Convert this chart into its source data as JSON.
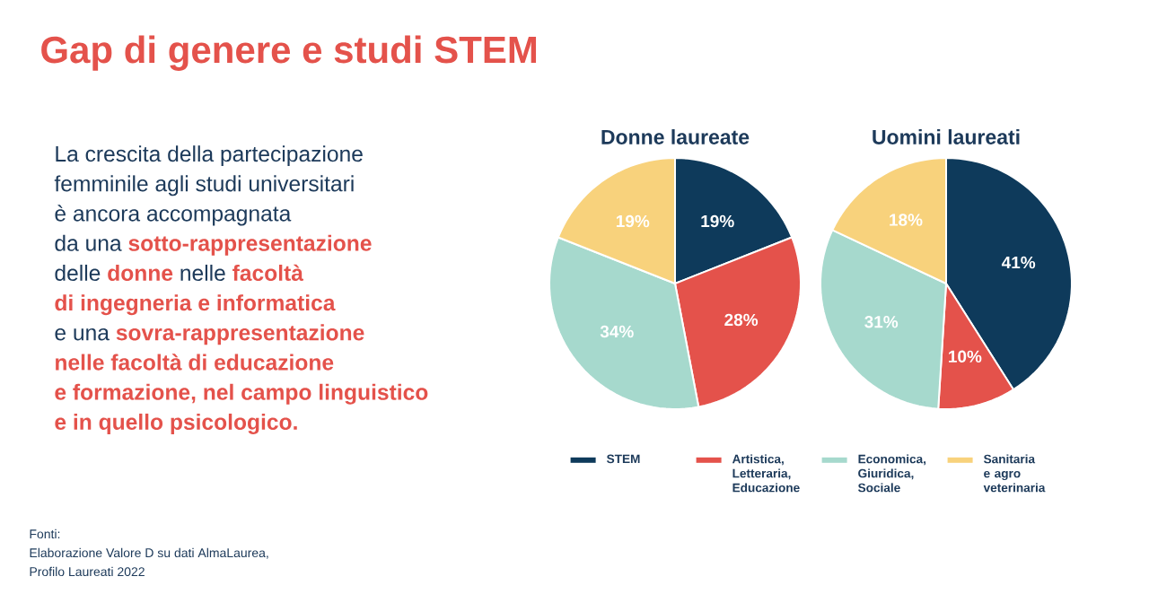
{
  "chart_data": [
    {
      "type": "other",
      "title": "Gap di genere e studi STEM",
      "annotations": [
        "La crescita della partecipazione",
        "femminile agli studi universitari",
        "è ancora accompagnata",
        "da una **sotto-rappresentazione**",
        "delle **donne** nelle **facoltà**",
        "**di ingegneria e informatica**",
        "e una **sovra-rappresentazione**",
        "**nelle facoltà di educazione**",
        "**e formazione, nel campo linguistico**",
        "**e in quello psicologico.**"
      ]
    },
    {
      "type": "pie",
      "title": "Donne laureate",
      "categories": [
        "STEM",
        "Artistica, Letteraria, Educazione",
        "Economica, Giuridica, Sociale",
        "Sanitaria e agro veterinaria"
      ],
      "values": [
        19,
        28,
        34,
        19
      ],
      "colors": [
        "#0e3a5b",
        "#e4524b",
        "#a6d9cd",
        "#f8d27c"
      ],
      "value_labels": [
        "19%",
        "28%",
        "34%",
        "19%"
      ],
      "legend": "bottom"
    },
    {
      "type": "pie",
      "title": "Uomini laureati",
      "categories": [
        null,
        null,
        null,
        null
      ],
      "values": [
        41,
        10,
        31,
        18
      ],
      "colors": [
        "#0e3a5b",
        "#e4524b",
        "#a6d9cd",
        "#f8d27c"
      ],
      "value_labels": [
        "41%",
        "10%",
        "31%",
        "18%"
      ]
    },
    {
      "type": "other",
      "annotations": [
        "Fonti:",
        "Elaborazione Valore D su dati AlmaLaurea,",
        "Profilo Laureati 2022"
      ]
    }
  ]
}
